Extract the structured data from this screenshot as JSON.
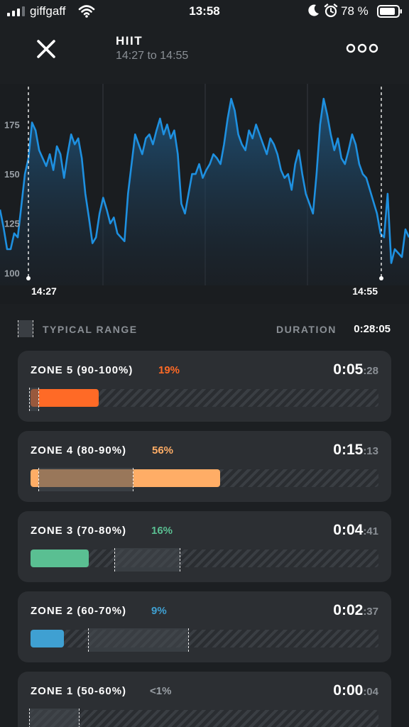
{
  "status": {
    "carrier": "giffgaff",
    "time": "13:58",
    "battery": "78 %"
  },
  "header": {
    "title": "HIIT",
    "subtitle": "14:27 to 14:55"
  },
  "chart_data": {
    "type": "area",
    "ylim": [
      98,
      192
    ],
    "yticks": [
      100,
      125,
      150,
      175
    ],
    "xlabels": [
      "14:27",
      "14:55"
    ],
    "line_color": "#1e90e0",
    "values": [
      132,
      123,
      112,
      112,
      120,
      118,
      134,
      150,
      158,
      176,
      172,
      162,
      158,
      154,
      160,
      152,
      164,
      160,
      148,
      160,
      170,
      165,
      168,
      158,
      140,
      128,
      115,
      118,
      130,
      138,
      132,
      125,
      128,
      120,
      118,
      116,
      140,
      155,
      170,
      165,
      160,
      168,
      170,
      165,
      172,
      178,
      170,
      175,
      168,
      172,
      160,
      135,
      130,
      140,
      150,
      150,
      155,
      148,
      152,
      155,
      160,
      158,
      155,
      165,
      178,
      188,
      182,
      170,
      165,
      162,
      172,
      168,
      175,
      170,
      165,
      160,
      168,
      165,
      160,
      152,
      148,
      150,
      142,
      155,
      162,
      150,
      140,
      135,
      130,
      150,
      175,
      188,
      180,
      170,
      162,
      168,
      158,
      155,
      162,
      170,
      165,
      155,
      150,
      148,
      142,
      136,
      130,
      120,
      118,
      140,
      105,
      112,
      110,
      108,
      122,
      118
    ],
    "series_color": "#1e90e0"
  },
  "legend": {
    "typical_range": "TYPICAL RANGE",
    "duration_label": "DURATION",
    "duration_value": "0:28:05"
  },
  "zones": [
    {
      "name": "ZONE 5 (90-100%)",
      "pct": "19%",
      "time_main": "0:05",
      "time_sec": ":28",
      "color": "#ff6a26",
      "fill": 0.195,
      "typ_start": 0.0,
      "typ_end": 0.012
    },
    {
      "name": "ZONE 4 (80-90%)",
      "pct": "56%",
      "time_main": "0:15",
      "time_sec": ":13",
      "color": "#ffad66",
      "fill": 0.545,
      "typ_start": 0.022,
      "typ_end": 0.295
    },
    {
      "name": "ZONE 3 (70-80%)",
      "pct": "16%",
      "time_main": "0:04",
      "time_sec": ":41",
      "color": "#5abf92",
      "fill": 0.168,
      "typ_start": 0.24,
      "typ_end": 0.43
    },
    {
      "name": "ZONE 2 (60-70%)",
      "pct": "9%",
      "time_main": "0:02",
      "time_sec": ":37",
      "color": "#3fa0d2",
      "fill": 0.095,
      "typ_start": 0.165,
      "typ_end": 0.455
    },
    {
      "name": "ZONE 1 (50-60%)",
      "pct": "<1%",
      "time_main": "0:00",
      "time_sec": ":04",
      "color": "#9aa0a6",
      "fill": 0.0,
      "typ_start": 0.0,
      "typ_end": 0.145
    }
  ]
}
